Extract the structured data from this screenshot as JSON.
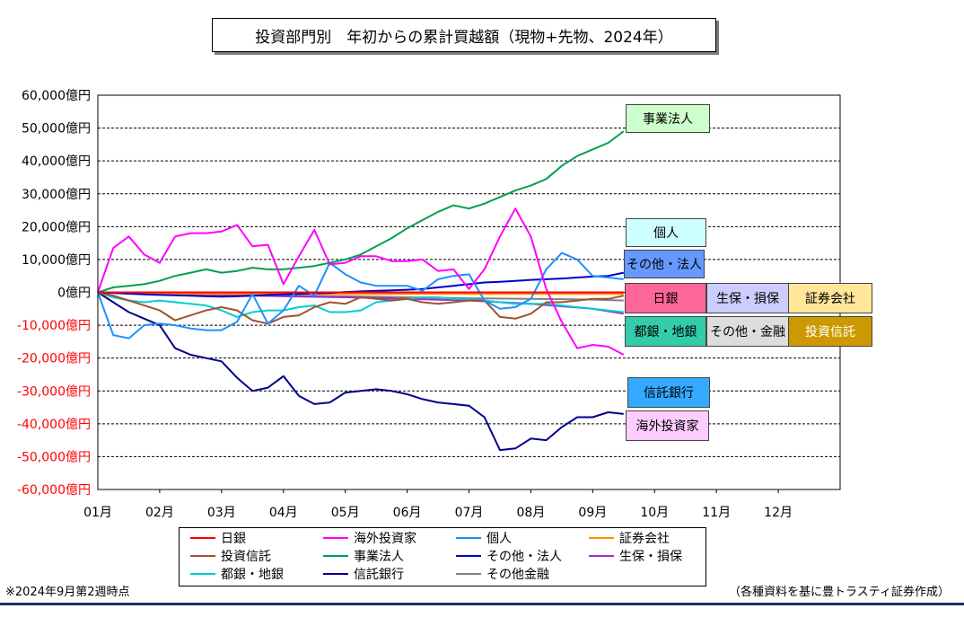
{
  "chart_data": {
    "type": "line",
    "title": "投資部門別　年初からの累計買越額（現物+先物、2024年）",
    "ylim": [
      -60000,
      60000
    ],
    "yticks": [
      60000,
      50000,
      40000,
      30000,
      20000,
      10000,
      0,
      -10000,
      -20000,
      -30000,
      -40000,
      -50000,
      -60000
    ],
    "ytick_labels": [
      "60,000億円",
      "50,000億円",
      "40,000億円",
      "30,000億円",
      "20,000億円",
      "10,000億円",
      "0億円",
      "-10,000億円",
      "-20,000億円",
      "-30,000億円",
      "-40,000億円",
      "-50,000億円",
      "-60,000億円"
    ],
    "xtick_labels": [
      "01月",
      "02月",
      "03月",
      "04月",
      "05月",
      "06月",
      "07月",
      "08月",
      "09月",
      "10月",
      "11月",
      "12月"
    ],
    "xlim": [
      0,
      12
    ],
    "grid": true,
    "legend_position": "bottom",
    "series": [
      {
        "name": "日銀",
        "color": "#ff0000",
        "x": [
          0,
          0.25,
          0.5,
          0.75,
          1,
          1.25,
          1.5,
          1.75,
          2,
          2.25,
          2.5,
          2.75,
          3,
          3.25,
          3.5,
          3.75,
          4,
          4.25,
          4.5,
          4.75,
          5,
          5.25,
          5.5,
          5.75,
          6,
          6.25,
          6.5,
          6.75,
          7,
          7.25,
          7.5,
          7.75,
          8,
          8.25,
          8.5
        ],
        "values": [
          0,
          0,
          0,
          0,
          0,
          0,
          0,
          0,
          0,
          0,
          0,
          0,
          0,
          0,
          0,
          0,
          0,
          0,
          0,
          0,
          0,
          0,
          0,
          0,
          0,
          0,
          0,
          0,
          0,
          0,
          0,
          0,
          0,
          0,
          0
        ]
      },
      {
        "name": "海外投資家",
        "color": "#ff00ff",
        "x": [
          0,
          0.25,
          0.5,
          0.75,
          1,
          1.25,
          1.5,
          1.75,
          2,
          2.25,
          2.5,
          2.75,
          3,
          3.25,
          3.5,
          3.75,
          4,
          4.25,
          4.5,
          4.75,
          5,
          5.25,
          5.5,
          5.75,
          6,
          6.25,
          6.5,
          6.75,
          7,
          7.25,
          7.5,
          7.75,
          8,
          8.25,
          8.5
        ],
        "values": [
          0,
          13500,
          17000,
          11500,
          9000,
          17000,
          18000,
          18000,
          18500,
          20500,
          14000,
          14500,
          2500,
          11000,
          19000,
          8500,
          9000,
          11000,
          11000,
          9500,
          9500,
          10000,
          6500,
          7000,
          1000,
          7000,
          17000,
          25500,
          17000,
          1000,
          -9000,
          -17000,
          -16000,
          -16500,
          -19000
        ]
      },
      {
        "name": "個人",
        "color": "#1e90ff",
        "x": [
          0,
          0.25,
          0.5,
          0.75,
          1,
          1.25,
          1.5,
          1.75,
          2,
          2.25,
          2.5,
          2.75,
          3,
          3.25,
          3.5,
          3.75,
          4,
          4.25,
          4.5,
          4.75,
          5,
          5.25,
          5.5,
          5.75,
          6,
          6.25,
          6.5,
          6.75,
          7,
          7.25,
          7.5,
          7.75,
          8,
          8.25,
          8.5
        ],
        "values": [
          0,
          -13000,
          -14000,
          -10000,
          -9500,
          -10000,
          -11000,
          -11500,
          -11500,
          -9000,
          -500,
          -9500,
          -5500,
          2000,
          -1000,
          9000,
          5500,
          3000,
          2000,
          2000,
          2000,
          500,
          4000,
          5000,
          5500,
          -2500,
          -5000,
          -4500,
          -2000,
          7000,
          12000,
          10000,
          5000,
          4500,
          4000
        ]
      },
      {
        "name": "証券会社",
        "color": "#ff8c00",
        "x": [
          0,
          1,
          2,
          3,
          4,
          5,
          6,
          7,
          8,
          8.5
        ],
        "values": [
          0,
          -500,
          -500,
          -500,
          -500,
          -500,
          -500,
          -500,
          -500,
          -500
        ]
      },
      {
        "name": "投資信託",
        "color": "#a0522d",
        "x": [
          0,
          0.25,
          0.5,
          0.75,
          1,
          1.25,
          1.5,
          1.75,
          2,
          2.25,
          2.5,
          2.75,
          3,
          3.25,
          3.5,
          3.75,
          4,
          4.25,
          4.5,
          4.75,
          5,
          5.25,
          5.5,
          5.75,
          6,
          6.25,
          6.5,
          6.75,
          7,
          7.25,
          7.5,
          7.75,
          8,
          8.25,
          8.5
        ],
        "values": [
          0,
          -1000,
          -2500,
          -4000,
          -5500,
          -8500,
          -7000,
          -5500,
          -4500,
          -5500,
          -8500,
          -9500,
          -7500,
          -7000,
          -4500,
          -3000,
          -3500,
          -1500,
          -2000,
          -2500,
          -2000,
          -3000,
          -3500,
          -3000,
          -2500,
          -2500,
          -7500,
          -8000,
          -6500,
          -3000,
          -3000,
          -2500,
          -2000,
          -2000,
          -1000
        ]
      },
      {
        "name": "事業法人",
        "color": "#00a050",
        "x": [
          0,
          0.25,
          0.5,
          0.75,
          1,
          1.25,
          1.5,
          1.75,
          2,
          2.25,
          2.5,
          2.75,
          3,
          3.25,
          3.5,
          3.75,
          4,
          4.25,
          4.5,
          4.75,
          5,
          5.25,
          5.5,
          5.75,
          6,
          6.25,
          6.5,
          6.75,
          7,
          7.25,
          7.5,
          7.75,
          8,
          8.25,
          8.5
        ],
        "values": [
          0,
          1500,
          2000,
          2500,
          3500,
          5000,
          6000,
          7000,
          6000,
          6500,
          7500,
          7000,
          7000,
          7500,
          8000,
          9000,
          10000,
          11500,
          14000,
          16500,
          19500,
          22000,
          24500,
          26500,
          25500,
          27000,
          29000,
          31000,
          32500,
          34500,
          38500,
          41500,
          43500,
          45500,
          49000
        ]
      },
      {
        "name": "その他・法人",
        "color": "#0000cd",
        "x": [
          0,
          0.25,
          0.5,
          0.75,
          1,
          1.25,
          1.5,
          1.75,
          2,
          2.25,
          2.5,
          2.75,
          3,
          3.25,
          3.5,
          3.75,
          4,
          4.25,
          4.5,
          4.75,
          5,
          5.25,
          5.5,
          5.75,
          6,
          6.25,
          6.5,
          6.75,
          7,
          7.25,
          7.5,
          7.75,
          8,
          8.25,
          8.5
        ],
        "values": [
          0,
          -200,
          -400,
          -600,
          -800,
          -900,
          -1000,
          -1200,
          -1300,
          -1200,
          -1000,
          -800,
          -600,
          -500,
          -300,
          -200,
          100,
          300,
          500,
          600,
          800,
          1000,
          1500,
          2000,
          2500,
          3000,
          3200,
          3500,
          3800,
          4000,
          4200,
          4500,
          4800,
          5000,
          6000
        ]
      },
      {
        "name": "生保・損保",
        "color": "#9932cc",
        "x": [
          0,
          1,
          2,
          3,
          4,
          5,
          6,
          7,
          8,
          8.5
        ],
        "values": [
          0,
          -500,
          -800,
          -1200,
          -1500,
          -2000,
          -2500,
          -3500,
          -5000,
          -6500
        ]
      },
      {
        "name": "都銀・地銀",
        "color": "#00ced1",
        "x": [
          0,
          0.25,
          0.5,
          0.75,
          1,
          1.25,
          1.5,
          1.75,
          2,
          2.25,
          2.5,
          2.75,
          3,
          3.25,
          3.5,
          3.75,
          4,
          4.25,
          4.5,
          4.75,
          5,
          5.25,
          5.5,
          5.75,
          6,
          6.25,
          6.5,
          6.75,
          7,
          7.25,
          7.5,
          7.75,
          8,
          8.25,
          8.5
        ],
        "values": [
          0,
          -1500,
          -2500,
          -3000,
          -2500,
          -3000,
          -3500,
          -4000,
          -5500,
          -7500,
          -6000,
          -5500,
          -5500,
          -4500,
          -4000,
          -6000,
          -6000,
          -5500,
          -3000,
          -2500,
          -2000,
          -1500,
          -1500,
          -2000,
          -2000,
          -2500,
          -3000,
          -3500,
          -3500,
          -3500,
          -4000,
          -4500,
          -5000,
          -5500,
          -6000
        ]
      },
      {
        "name": "信託銀行",
        "color": "#00008b",
        "x": [
          0,
          0.25,
          0.5,
          0.75,
          1,
          1.25,
          1.5,
          1.75,
          2,
          2.25,
          2.5,
          2.75,
          3,
          3.25,
          3.5,
          3.75,
          4,
          4.25,
          4.5,
          4.75,
          5,
          5.25,
          5.5,
          5.75,
          6,
          6.25,
          6.5,
          6.75,
          7,
          7.25,
          7.5,
          7.75,
          8,
          8.25,
          8.5
        ],
        "values": [
          0,
          -3000,
          -6000,
          -8000,
          -10000,
          -17000,
          -19000,
          -20000,
          -21000,
          -26000,
          -30000,
          -29000,
          -25500,
          -31500,
          -34000,
          -33500,
          -30500,
          -30000,
          -29500,
          -30000,
          -31000,
          -32500,
          -33500,
          -34000,
          -34500,
          -38000,
          -48000,
          -47500,
          -44500,
          -45000,
          -41000,
          -38000,
          -38000,
          -36500,
          -37000
        ]
      },
      {
        "name": "その他金融",
        "color": "#808080",
        "x": [
          0,
          1,
          2,
          3,
          4,
          5,
          6,
          7,
          8,
          8.5
        ],
        "values": [
          0,
          -500,
          -800,
          -1000,
          -1200,
          -1500,
          -1800,
          -2000,
          -2200,
          -2500
        ]
      }
    ],
    "series_labels": [
      {
        "text": "事業法人",
        "fill": "#ccffcc",
        "series": "事業法人"
      },
      {
        "text": "個人",
        "fill": "#ccffff",
        "series": "個人"
      },
      {
        "text": "その他・法人",
        "fill": "#6699ff",
        "series": "その他・法人"
      },
      {
        "text": "日銀",
        "fill": "#ff6699",
        "series": "日銀"
      },
      {
        "text": "生保・損保",
        "fill": "#ccccff",
        "series": "生保・損保"
      },
      {
        "text": "証券会社",
        "fill": "#ffe699",
        "series": "証券会社"
      },
      {
        "text": "都銀・地銀",
        "fill": "#33ccaa",
        "series": "都銀・地銀"
      },
      {
        "text": "その他・金融",
        "fill": "#dddddd",
        "series": "その他金融"
      },
      {
        "text": "投資信託",
        "fill": "#cc9900",
        "series": "投資信託"
      },
      {
        "text": "信託銀行",
        "fill": "#33aaff",
        "series": "信託銀行"
      },
      {
        "text": "海外投資家",
        "fill": "#ffccff",
        "series": "海外投資家"
      }
    ]
  },
  "footer": {
    "note_left": "※2024年9月第2週時点",
    "note_right": "（各種資料を基に豊トラスティ証券作成）"
  }
}
